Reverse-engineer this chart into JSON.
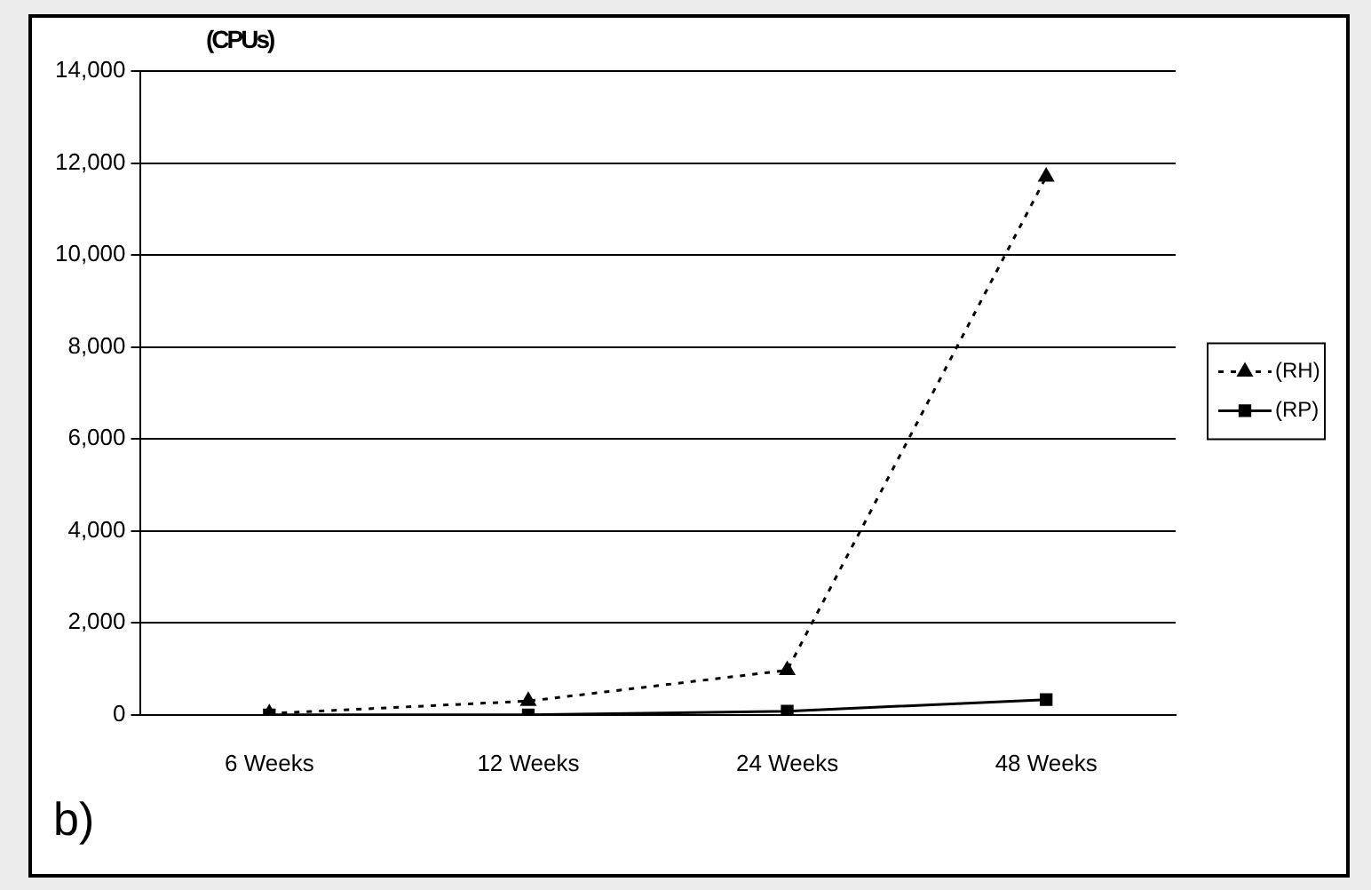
{
  "chart_data": {
    "type": "line",
    "ylabel": "(CPUs)",
    "categories": [
      "6 Weeks",
      "12 Weeks",
      "24 Weeks",
      "48 Weeks"
    ],
    "series": [
      {
        "name": "(RH)",
        "color": "#000000",
        "values": [
          30,
          300,
          970,
          11700
        ],
        "marker": "triangle",
        "line_style": "dotted"
      },
      {
        "name": "(RP)",
        "color": "#000000",
        "values": [
          0,
          0,
          80,
          330
        ],
        "marker": "square",
        "line_style": "solid"
      }
    ],
    "ylim": [
      0,
      14000
    ],
    "yticks": [
      {
        "value": 0,
        "label": "0"
      },
      {
        "value": 2000,
        "label": "2,000"
      },
      {
        "value": 4000,
        "label": "4,000"
      },
      {
        "value": 6000,
        "label": "6,000"
      },
      {
        "value": 8000,
        "label": "8,000"
      },
      {
        "value": 10000,
        "label": "10,000"
      },
      {
        "value": 12000,
        "label": "12,000"
      },
      {
        "value": 14000,
        "label": "14,000"
      }
    ],
    "grid": "y",
    "legend": "right",
    "annotations": [
      "b)"
    ]
  }
}
